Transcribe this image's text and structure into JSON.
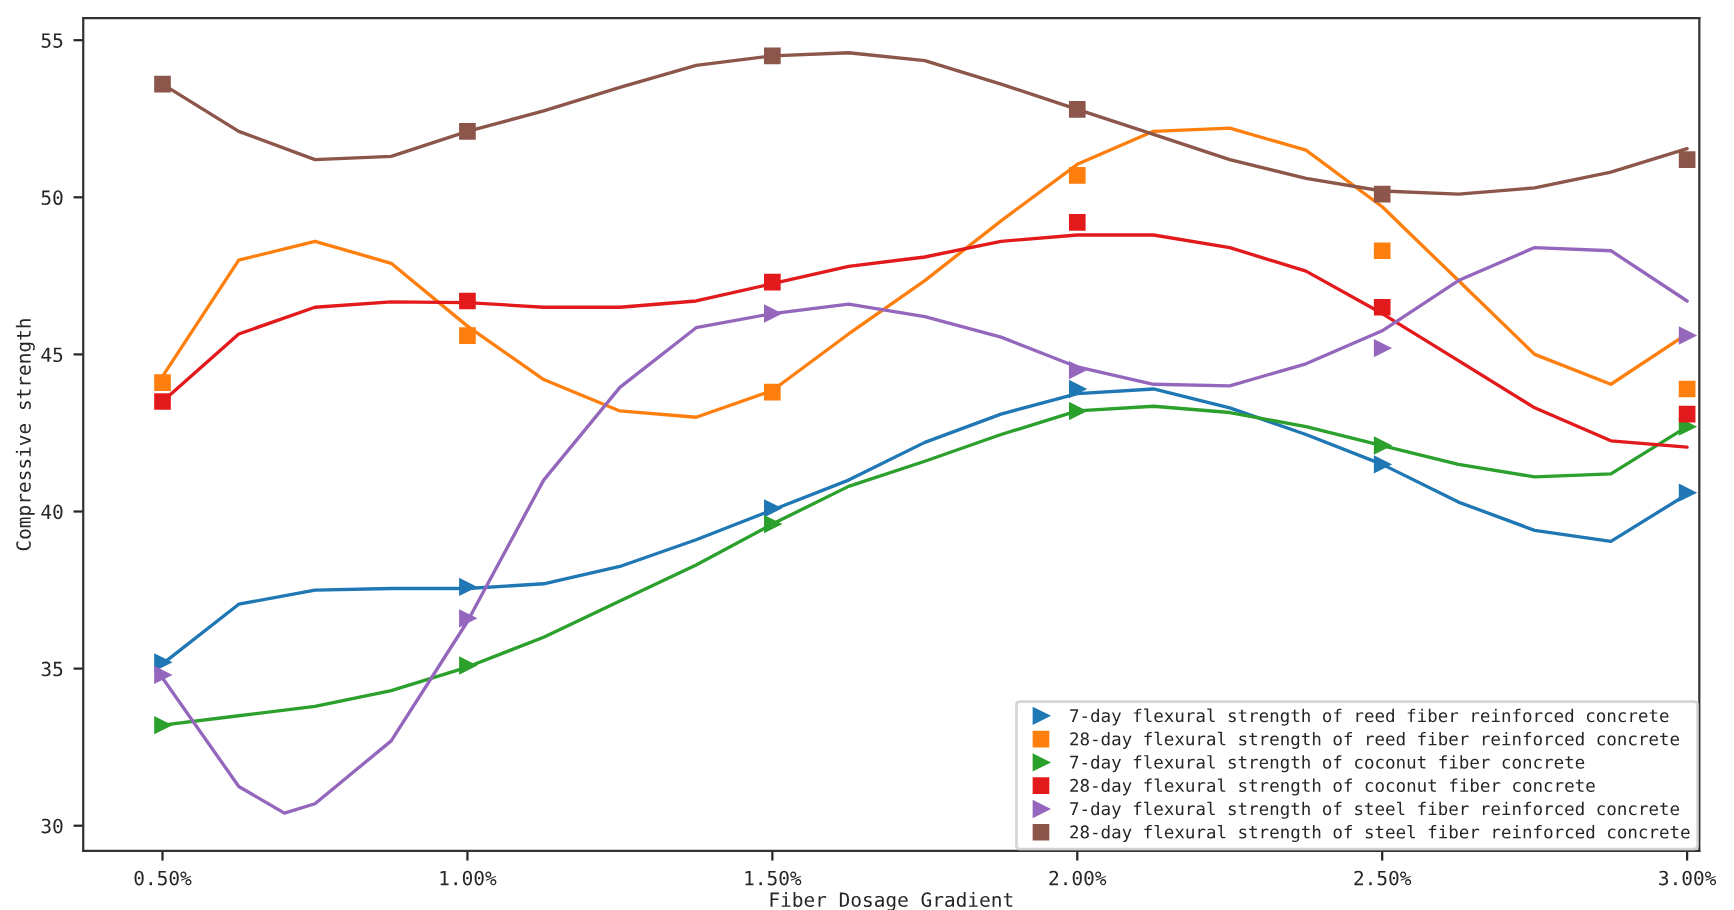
{
  "chart_data": {
    "type": "scatter",
    "xlabel": "Fiber Dosage Gradient",
    "ylabel": "Compressive strength",
    "x": [
      0.5,
      1.0,
      1.5,
      2.0,
      2.5,
      3.0
    ],
    "xlim": [
      0.37,
      3.02
    ],
    "xticks": [
      {
        "value": 0.5,
        "label": "0.50%"
      },
      {
        "value": 1.0,
        "label": "1.00%"
      },
      {
        "value": 1.5,
        "label": "1.50%"
      },
      {
        "value": 2.0,
        "label": "2.00%"
      },
      {
        "value": 2.5,
        "label": "2.50%"
      },
      {
        "value": 3.0,
        "label": "3.00%"
      }
    ],
    "ylim": [
      29.2,
      55.7
    ],
    "yticks": [
      30,
      35,
      40,
      45,
      50,
      55
    ],
    "grid": false,
    "legend": "bottom right",
    "series": [
      {
        "name": "7-day flexural strength of reed fiber reinforced concrete",
        "color": "#1f77b4",
        "marker": "triangle",
        "values": [
          35.2,
          37.6,
          40.1,
          43.9,
          41.5,
          40.6
        ]
      },
      {
        "name": "28-day flexural strength of reed fiber reinforced concrete",
        "color": "#ff7f0e",
        "marker": "square",
        "values": [
          44.1,
          45.6,
          43.8,
          50.7,
          48.3,
          43.9
        ]
      },
      {
        "name": "7-day flexural strength of coconut fiber concrete",
        "color": "#2ca02c",
        "marker": "triangle",
        "values": [
          33.2,
          35.1,
          39.6,
          43.2,
          42.1,
          42.7
        ]
      },
      {
        "name": "28-day flexural strength of coconut fiber concrete",
        "color": "#e31a1c",
        "marker": "square",
        "values": [
          43.5,
          46.7,
          47.3,
          49.2,
          46.5,
          43.1
        ]
      },
      {
        "name": "7-day flexural strength of steel fiber reinforced concrete",
        "color": "#9467bd",
        "marker": "triangle",
        "values": [
          34.8,
          36.6,
          46.3,
          44.5,
          45.2,
          45.6
        ]
      },
      {
        "name": "28-day flexural strength of steel fiber reinforced concrete",
        "color": "#8c564b",
        "marker": "square",
        "values": [
          53.6,
          52.1,
          54.5,
          52.8,
          50.1,
          51.2
        ]
      },
      {
        "type": "line",
        "color": "#1f77b4",
        "x": [
          0.5,
          0.625,
          0.75,
          0.875,
          1.0,
          1.125,
          1.25,
          1.375,
          1.5,
          1.625,
          1.75,
          1.875,
          2.0,
          2.125,
          2.25,
          2.375,
          2.5,
          2.625,
          2.75,
          2.875,
          3.0
        ],
        "values": [
          35.15,
          37.05,
          37.5,
          37.55,
          37.55,
          37.7,
          38.25,
          39.1,
          40.05,
          41.0,
          42.2,
          43.1,
          43.75,
          43.9,
          43.3,
          42.45,
          41.5,
          40.3,
          39.4,
          39.05,
          40.55
        ]
      },
      {
        "type": "line",
        "color": "#ff7f0e",
        "x": [
          0.5,
          0.625,
          0.75,
          0.875,
          1.0,
          1.125,
          1.25,
          1.375,
          1.5,
          1.625,
          1.75,
          1.875,
          2.0,
          2.125,
          2.25,
          2.375,
          2.5,
          2.625,
          2.75,
          2.875,
          3.0
        ],
        "values": [
          44.3,
          48.0,
          48.6,
          47.9,
          45.9,
          44.2,
          43.2,
          43.0,
          43.85,
          45.65,
          47.35,
          49.25,
          51.05,
          52.1,
          52.2,
          51.5,
          49.7,
          47.35,
          45.0,
          44.05,
          45.65
        ]
      },
      {
        "type": "line",
        "color": "#2ca02c",
        "x": [
          0.5,
          0.625,
          0.75,
          0.875,
          1.0,
          1.125,
          1.25,
          1.375,
          1.5,
          1.625,
          1.75,
          1.875,
          2.0,
          2.125,
          2.25,
          2.375,
          2.5,
          2.625,
          2.75,
          2.875,
          3.0
        ],
        "values": [
          33.2,
          33.5,
          33.8,
          34.3,
          35.05,
          36.0,
          37.15,
          38.3,
          39.6,
          40.8,
          41.6,
          42.45,
          43.2,
          43.35,
          43.15,
          42.7,
          42.1,
          41.5,
          41.1,
          41.2,
          42.7
        ]
      },
      {
        "type": "line",
        "color": "#e31a1c",
        "x": [
          0.5,
          0.625,
          0.75,
          0.875,
          1.0,
          1.125,
          1.25,
          1.375,
          1.5,
          1.625,
          1.75,
          1.875,
          2.0,
          2.125,
          2.25,
          2.375,
          2.5,
          2.625,
          2.75,
          2.875,
          3.0
        ],
        "values": [
          43.5,
          45.65,
          46.5,
          46.67,
          46.65,
          46.5,
          46.5,
          46.7,
          47.25,
          47.8,
          48.1,
          48.6,
          48.8,
          48.8,
          48.4,
          47.65,
          46.3,
          44.8,
          43.3,
          42.25,
          42.05
        ]
      },
      {
        "type": "line",
        "color": "#9467bd",
        "x": [
          0.5,
          0.625,
          0.7,
          0.75,
          0.875,
          1.0,
          1.125,
          1.25,
          1.375,
          1.5,
          1.625,
          1.75,
          1.875,
          2.0,
          2.125,
          2.25,
          2.375,
          2.5,
          2.625,
          2.75,
          2.875,
          3.0
        ],
        "values": [
          34.7,
          31.25,
          30.4,
          30.7,
          32.7,
          36.5,
          41.0,
          43.95,
          45.85,
          46.3,
          46.6,
          46.2,
          45.55,
          44.6,
          44.05,
          44.0,
          44.7,
          45.75,
          47.35,
          48.4,
          48.3,
          46.7
        ]
      },
      {
        "type": "line",
        "color": "#8c564b",
        "x": [
          0.5,
          0.625,
          0.75,
          0.875,
          1.0,
          1.125,
          1.25,
          1.375,
          1.5,
          1.625,
          1.75,
          1.875,
          2.0,
          2.125,
          2.25,
          2.375,
          2.5,
          2.625,
          2.75,
          2.875,
          3.0
        ],
        "values": [
          53.6,
          52.1,
          51.2,
          51.3,
          52.1,
          52.75,
          53.5,
          54.2,
          54.5,
          54.6,
          54.35,
          53.6,
          52.8,
          52.0,
          51.2,
          50.6,
          50.2,
          50.1,
          50.3,
          50.8,
          51.55
        ]
      }
    ]
  }
}
